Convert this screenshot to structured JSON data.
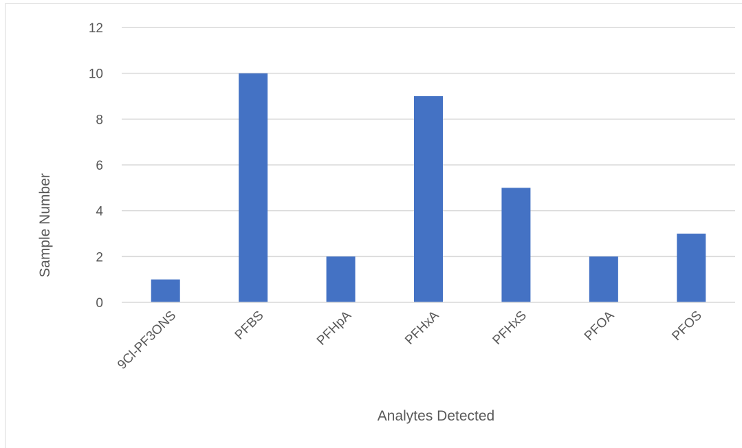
{
  "chart_data": {
    "type": "bar",
    "title": "",
    "xlabel": "Analytes Detected",
    "ylabel": "Sample Number",
    "categories": [
      "9Cl-PF3ONS",
      "PFBS",
      "PFHpA",
      "PFHxA",
      "PFHxS",
      "PFOA",
      "PFOS"
    ],
    "values": [
      1,
      10,
      2,
      9,
      5,
      2,
      3
    ],
    "ylim": [
      0,
      12
    ],
    "yticks": [
      0,
      2,
      4,
      6,
      8,
      10,
      12
    ],
    "grid": true,
    "legend": "none",
    "bar_color": "#4472C4",
    "grid_color": "#d9d9d9",
    "axis_color": "#d9d9d9"
  }
}
